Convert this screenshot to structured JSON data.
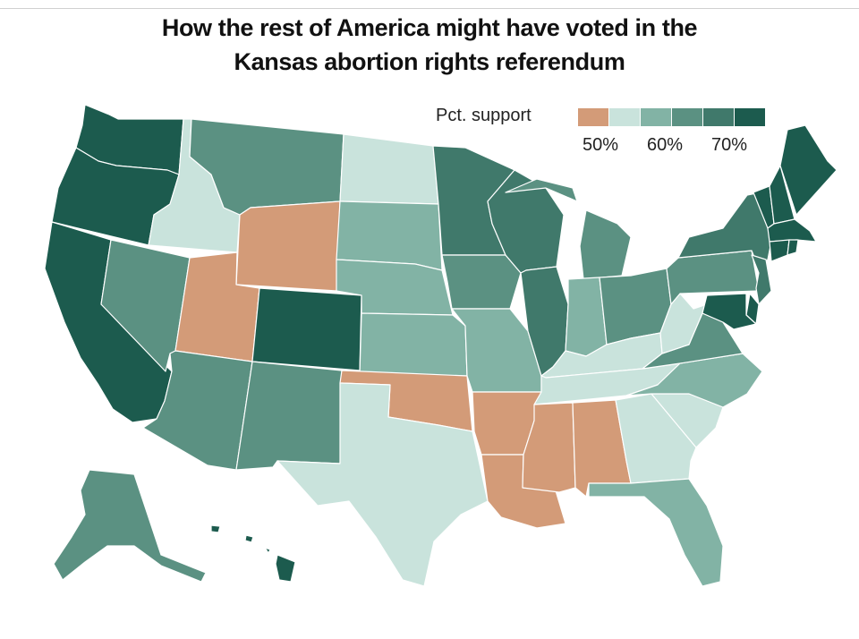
{
  "title_line1": "How the rest of America might have voted in the",
  "title_line2": "Kansas abortion rights referendum",
  "legend": {
    "label": "Pct. support",
    "ticks": [
      "50%",
      "60%",
      "70%"
    ],
    "bins": [
      {
        "color": "#d39b78",
        "range": "<50%"
      },
      {
        "color": "#c9e3dc",
        "range": "50–55%"
      },
      {
        "color": "#82b3a5",
        "range": "55–60%"
      },
      {
        "color": "#5b9182",
        "range": "60–65%"
      },
      {
        "color": "#40796b",
        "range": "65–70%"
      },
      {
        "color": "#1c5b4e",
        "range": ">70%"
      }
    ]
  },
  "states": [
    {
      "id": "WA",
      "bin": 5
    },
    {
      "id": "OR",
      "bin": 5
    },
    {
      "id": "CA",
      "bin": 5
    },
    {
      "id": "ID",
      "bin": 1
    },
    {
      "id": "NV",
      "bin": 3
    },
    {
      "id": "MT",
      "bin": 3
    },
    {
      "id": "WY",
      "bin": 0
    },
    {
      "id": "UT",
      "bin": 0
    },
    {
      "id": "AZ",
      "bin": 3
    },
    {
      "id": "CO",
      "bin": 5
    },
    {
      "id": "NM",
      "bin": 3
    },
    {
      "id": "ND",
      "bin": 1
    },
    {
      "id": "SD",
      "bin": 2
    },
    {
      "id": "NE",
      "bin": 2
    },
    {
      "id": "KS",
      "bin": 2
    },
    {
      "id": "OK",
      "bin": 0
    },
    {
      "id": "TX",
      "bin": 1
    },
    {
      "id": "MN",
      "bin": 4
    },
    {
      "id": "IA",
      "bin": 3
    },
    {
      "id": "MO",
      "bin": 2
    },
    {
      "id": "AR",
      "bin": 0
    },
    {
      "id": "LA",
      "bin": 0
    },
    {
      "id": "WI",
      "bin": 4
    },
    {
      "id": "IL",
      "bin": 4
    },
    {
      "id": "MI",
      "bin": 3
    },
    {
      "id": "IN",
      "bin": 2
    },
    {
      "id": "OH",
      "bin": 3
    },
    {
      "id": "KY",
      "bin": 1
    },
    {
      "id": "TN",
      "bin": 1
    },
    {
      "id": "MS",
      "bin": 0
    },
    {
      "id": "AL",
      "bin": 0
    },
    {
      "id": "GA",
      "bin": 1
    },
    {
      "id": "FL",
      "bin": 2
    },
    {
      "id": "SC",
      "bin": 1
    },
    {
      "id": "NC",
      "bin": 2
    },
    {
      "id": "VA",
      "bin": 3
    },
    {
      "id": "WV",
      "bin": 1
    },
    {
      "id": "PA",
      "bin": 3
    },
    {
      "id": "NY",
      "bin": 4
    },
    {
      "id": "VT",
      "bin": 5
    },
    {
      "id": "NH",
      "bin": 5
    },
    {
      "id": "ME",
      "bin": 5
    },
    {
      "id": "MA",
      "bin": 5
    },
    {
      "id": "CT",
      "bin": 5
    },
    {
      "id": "RI",
      "bin": 5
    },
    {
      "id": "NJ",
      "bin": 4
    },
    {
      "id": "DE",
      "bin": 5
    },
    {
      "id": "MD",
      "bin": 5
    },
    {
      "id": "AK",
      "bin": 3
    },
    {
      "id": "HI",
      "bin": 5
    }
  ]
}
